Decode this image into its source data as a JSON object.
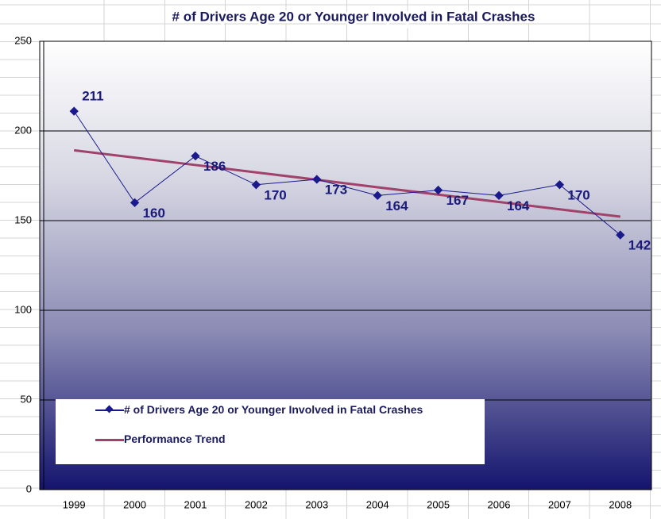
{
  "chart_data": {
    "type": "line",
    "title": "# of Drivers Age 20 or Younger Involved in Fatal Crashes",
    "categories": [
      "1999",
      "2000",
      "2001",
      "2002",
      "2003",
      "2004",
      "2005",
      "2006",
      "2007",
      "2008"
    ],
    "series": [
      {
        "name": "# of Drivers Age 20 or Younger Involved in Fatal Crashes",
        "color": "#1a1a8c",
        "values": [
          211,
          160,
          186,
          170,
          173,
          164,
          167,
          164,
          170,
          142
        ]
      },
      {
        "name": "Performance Trend",
        "color": "#a0426a",
        "values": [
          189.2,
          185.1,
          181.0,
          176.9,
          172.8,
          168.6,
          164.5,
          160.4,
          156.3,
          152.2
        ]
      }
    ],
    "ylim": [
      0,
      250
    ],
    "yticks": [
      0,
      50,
      100,
      150,
      200,
      250
    ],
    "grid": true,
    "legend": "bottom-left"
  }
}
